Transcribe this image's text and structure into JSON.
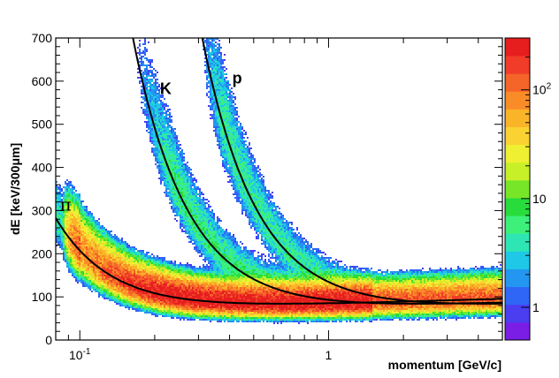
{
  "chart_data": {
    "type": "heatmap",
    "xlabel": "momentum [GeV/c]",
    "ylabel": "dE [keV/300μm]",
    "xscale": "log",
    "xlim": [
      0.08,
      5.0
    ],
    "ylim": [
      0,
      700
    ],
    "x_ticks": [
      {
        "value": 0.1,
        "label": "10",
        "sup": "-1"
      },
      {
        "value": 1.0,
        "label": "1",
        "sup": ""
      }
    ],
    "y_ticks": [
      0,
      100,
      200,
      300,
      400,
      500,
      600,
      700
    ],
    "y_tick_labels": [
      "0",
      "100",
      "200",
      "300",
      "400",
      "500",
      "600",
      "700"
    ],
    "colorbar": {
      "scale": "log",
      "range": [
        0.5,
        300
      ],
      "palette": [
        "#7a1ee6",
        "#4a3ef0",
        "#2f66f5",
        "#2296f0",
        "#1ec8e6",
        "#2ee6b4",
        "#3cf07a",
        "#28dc3c",
        "#78e628",
        "#c8f028",
        "#f0f032",
        "#fad232",
        "#fab428",
        "#fa8c28",
        "#f56428",
        "#f03c28",
        "#e61e1e"
      ],
      "ticks": [
        {
          "value": 1,
          "label": "1",
          "sup": ""
        },
        {
          "value": 10,
          "label": "10",
          "sup": ""
        },
        {
          "value": 100,
          "label": "10",
          "sup": "2"
        }
      ]
    },
    "curves": [
      {
        "label": "π",
        "label_x": 0.083,
        "label_y": 300,
        "mass": 0.1396
      },
      {
        "label": "K",
        "label_x": 0.21,
        "label_y": 570,
        "mass": 0.4937
      },
      {
        "label": "p",
        "label_x": 0.41,
        "label_y": 595,
        "mass": 0.9383
      }
    ],
    "bands": [
      {
        "particle": "pi",
        "mass": 0.1396,
        "p_range": [
          0.08,
          5.0
        ],
        "peak_density": 300
      },
      {
        "particle": "K",
        "mass": 0.4937,
        "p_range": [
          0.16,
          2.5
        ],
        "peak_density": 6
      },
      {
        "particle": "p",
        "mass": 0.9383,
        "p_range": [
          0.3,
          3.0
        ],
        "peak_density": 5
      }
    ],
    "grid": false
  }
}
